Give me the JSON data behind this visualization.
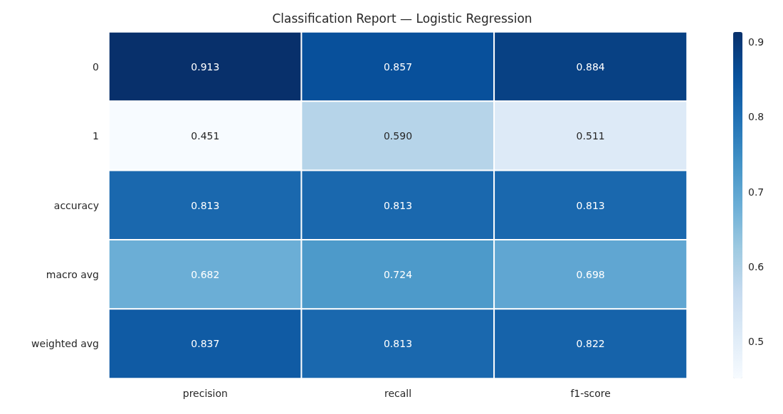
{
  "chart_data": {
    "type": "heatmap",
    "title": "Classification Report — Logistic Regression",
    "categories": [
      "precision",
      "recall",
      "f1-score"
    ],
    "y_categories": [
      "0",
      "1",
      "accuracy",
      "macro avg",
      "weighted avg"
    ],
    "cells": [
      [
        0.913,
        0.857,
        0.884
      ],
      [
        0.451,
        0.59,
        0.511
      ],
      [
        0.813,
        0.813,
        0.813
      ],
      [
        0.682,
        0.724,
        0.698
      ],
      [
        0.837,
        0.813,
        0.822
      ]
    ],
    "cell_labels": [
      [
        "0.913",
        "0.857",
        "0.884"
      ],
      [
        "0.451",
        "0.590",
        "0.511"
      ],
      [
        "0.813",
        "0.813",
        "0.813"
      ],
      [
        "0.682",
        "0.724",
        "0.698"
      ],
      [
        "0.837",
        "0.813",
        "0.822"
      ]
    ],
    "clim": [
      0.451,
      0.913
    ],
    "cticks": [
      0.5,
      0.6,
      0.7,
      0.8,
      0.9
    ]
  }
}
